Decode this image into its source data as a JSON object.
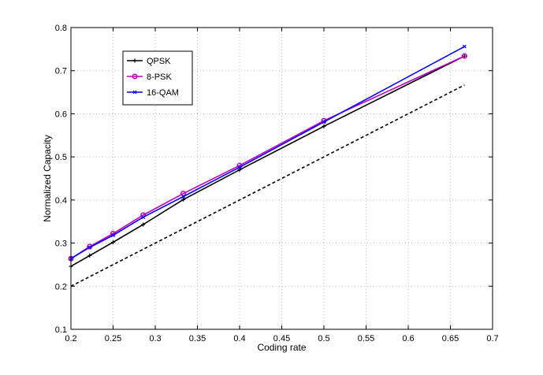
{
  "chart_data": {
    "type": "line",
    "title": "",
    "xlabel": "Coding rate",
    "ylabel": "Normalized Capacity",
    "xlim": [
      0.2,
      0.7
    ],
    "ylim": [
      0.1,
      0.8
    ],
    "xticks": [
      0.2,
      0.25,
      0.3,
      0.35,
      0.4,
      0.45,
      0.5,
      0.55,
      0.6,
      0.65,
      0.7
    ],
    "xtick_labels": [
      "0.2",
      "0.25",
      "0.3",
      "0.35",
      "0.4",
      "0.45",
      "0.5",
      "0.55",
      "0.6",
      "0.65",
      "0.7"
    ],
    "yticks": [
      0.1,
      0.2,
      0.3,
      0.4,
      0.5,
      0.6,
      0.7,
      0.8
    ],
    "ytick_labels": [
      "0.1",
      "0.2",
      "0.3",
      "0.4",
      "0.5",
      "0.6",
      "0.7",
      "0.8"
    ],
    "grid": true,
    "legend_position": "top-left",
    "series": [
      {
        "name": "QPSK",
        "color": "#000000",
        "marker": "plus",
        "line_style": "solid",
        "x": [
          0.2,
          0.2222,
          0.25,
          0.2857,
          0.3333,
          0.4,
          0.5,
          0.6667
        ],
        "y": [
          0.246,
          0.271,
          0.302,
          0.343,
          0.401,
          0.47,
          0.571,
          0.734
        ]
      },
      {
        "name": "8-PSK",
        "color": "#bf00bf",
        "marker": "circle",
        "line_style": "solid",
        "x": [
          0.2,
          0.2222,
          0.25,
          0.2857,
          0.3333,
          0.4,
          0.5,
          0.6667
        ],
        "y": [
          0.264,
          0.292,
          0.322,
          0.365,
          0.415,
          0.48,
          0.584,
          0.734
        ]
      },
      {
        "name": "16-QAM",
        "color": "#0000ff",
        "marker": "x",
        "line_style": "solid",
        "x": [
          0.2,
          0.2222,
          0.25,
          0.2857,
          0.3333,
          0.4,
          0.5,
          0.6667
        ],
        "y": [
          0.264,
          0.29,
          0.318,
          0.36,
          0.408,
          0.476,
          0.581,
          0.756
        ]
      },
      {
        "color": "#000000",
        "marker": "none",
        "line_style": "dashed",
        "x": [
          0.2,
          0.6667
        ],
        "y": [
          0.2,
          0.6667
        ]
      }
    ]
  }
}
